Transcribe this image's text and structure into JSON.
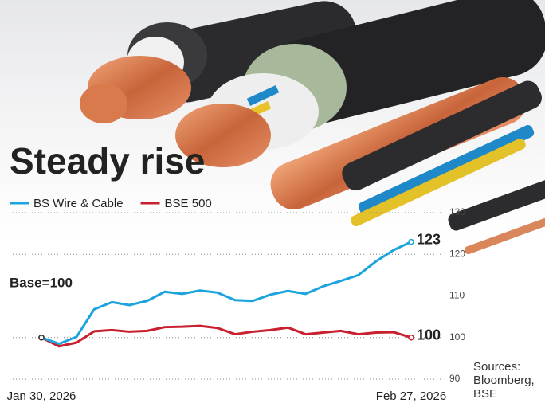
{
  "chart_data": {
    "type": "line",
    "title": "Steady rise",
    "annotation": "Base=100",
    "source": "Sources: Bloomberg, BSE",
    "categories": [
      "Jan 30, 2026",
      null,
      null,
      null,
      null,
      null,
      null,
      null,
      null,
      null,
      null,
      null,
      null,
      null,
      null,
      null,
      null,
      null,
      null,
      null,
      null,
      "Feb 27, 2026"
    ],
    "series": [
      {
        "name": "BS Wire & Cable",
        "color": "#1aa3dc",
        "values": [
          100,
          98.5,
          100.2,
          106.8,
          108.5,
          107.8,
          108.8,
          111,
          110.5,
          111.3,
          110.8,
          109,
          108.8,
          110.3,
          111.2,
          110.5,
          112.3,
          113.6,
          115,
          118.3,
          121,
          123
        ]
      },
      {
        "name": "BSE 500",
        "color": "#c8202f",
        "values": [
          100,
          97.9,
          98.8,
          101.5,
          101.8,
          101.4,
          101.6,
          102.5,
          102.6,
          102.8,
          102.3,
          100.8,
          101.4,
          101.8,
          102.4,
          100.8,
          101.2,
          101.6,
          100.8,
          101.2,
          101.3,
          100
        ]
      }
    ],
    "ylim": [
      90,
      130
    ],
    "yticks": [
      90,
      100,
      110,
      120,
      130
    ],
    "grid": true
  }
}
